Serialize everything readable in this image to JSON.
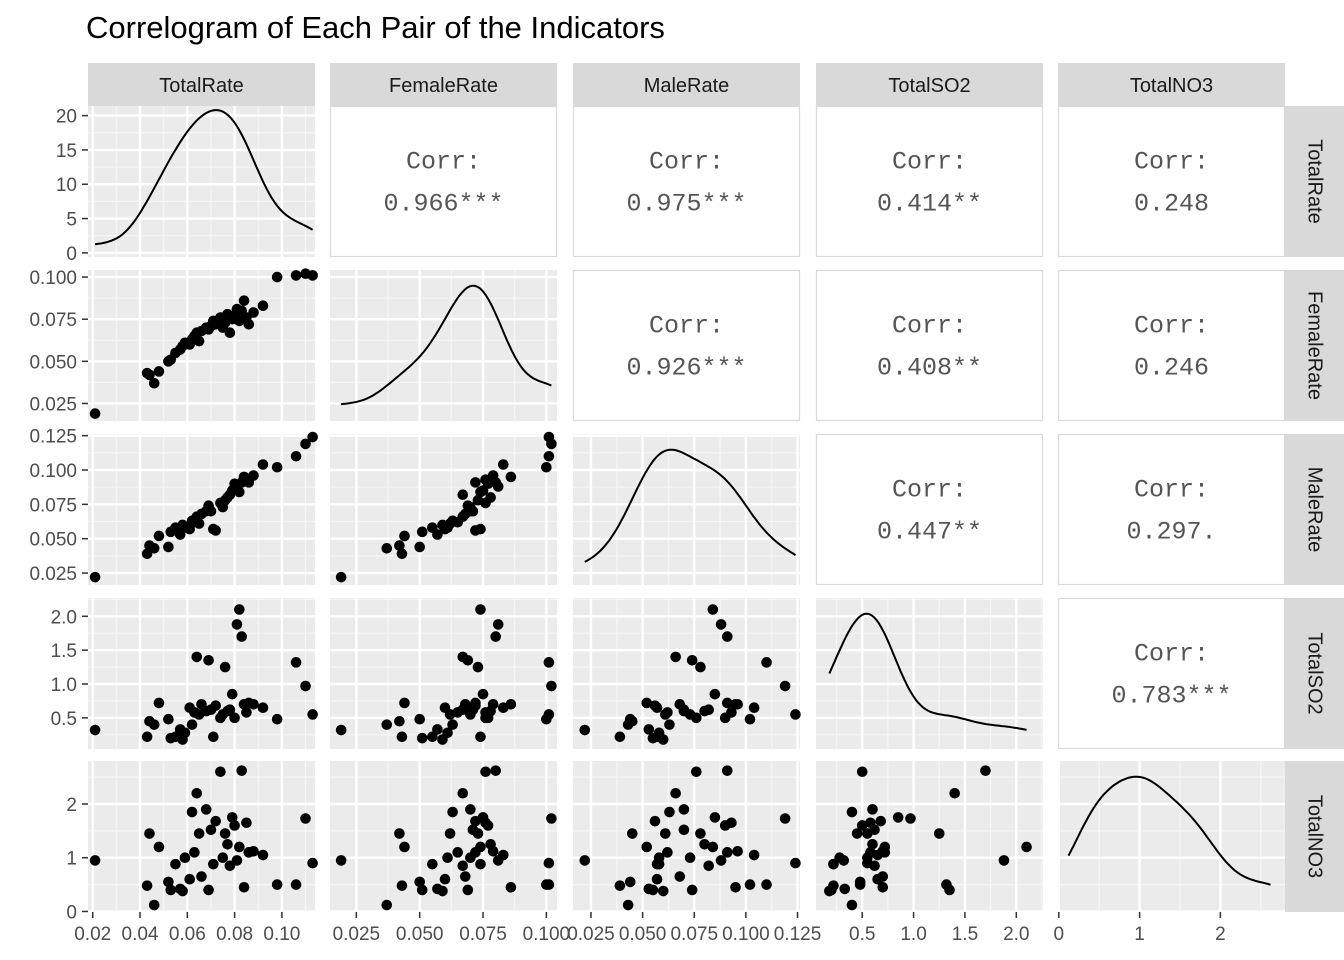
{
  "chart_data": {
    "type": "scatter",
    "title": "Correlogram of Each Pair of the Indicators",
    "variables": [
      "TotalRate",
      "FemaleRate",
      "MaleRate",
      "TotalSO2",
      "TotalNO3"
    ],
    "corr_label": "Corr:",
    "correlations": [
      {
        "row": "TotalRate",
        "col": "FemaleRate",
        "text": "0.966***"
      },
      {
        "row": "TotalRate",
        "col": "MaleRate",
        "text": "0.975***"
      },
      {
        "row": "TotalRate",
        "col": "TotalSO2",
        "text": "0.414**"
      },
      {
        "row": "TotalRate",
        "col": "TotalNO3",
        "text": "0.248"
      },
      {
        "row": "FemaleRate",
        "col": "MaleRate",
        "text": "0.926***"
      },
      {
        "row": "FemaleRate",
        "col": "TotalSO2",
        "text": "0.408**"
      },
      {
        "row": "FemaleRate",
        "col": "TotalNO3",
        "text": "0.246"
      },
      {
        "row": "MaleRate",
        "col": "TotalSO2",
        "text": "0.447**"
      },
      {
        "row": "MaleRate",
        "col": "TotalNO3",
        "text": "0.297."
      },
      {
        "row": "TotalSO2",
        "col": "TotalNO3",
        "text": "0.783***"
      }
    ],
    "x_axis": {
      "TotalRate": {
        "range": [
          0.018,
          0.114
        ],
        "ticks": [
          0.02,
          0.04,
          0.06,
          0.08,
          0.1
        ],
        "labels": [
          "0.02",
          "0.04",
          "0.06",
          "0.08",
          "0.10"
        ]
      },
      "FemaleRate": {
        "range": [
          0.0146,
          0.1042
        ],
        "ticks": [
          0.025,
          0.05,
          0.075,
          0.1
        ],
        "labels": [
          "0.025",
          "0.050",
          "0.075",
          "0.100"
        ]
      },
      "MaleRate": {
        "range": [
          0.0163,
          0.1262
        ],
        "ticks": [
          0.025,
          0.05,
          0.075,
          0.1,
          0.125
        ],
        "labels": [
          "0.025",
          "0.050",
          "0.075",
          "0.100",
          "0.125"
        ]
      },
      "TotalSO2": {
        "range": [
          0.05,
          2.26
        ],
        "ticks": [
          0.5,
          1.0,
          1.5,
          2.0
        ],
        "labels": [
          "0.5",
          "1.0",
          "1.5",
          "2.0"
        ]
      },
      "TotalNO3": {
        "range": [
          -0.01,
          2.8
        ],
        "ticks": [
          0,
          1,
          2
        ],
        "labels": [
          "0",
          "1",
          "2"
        ]
      }
    },
    "y_axis": {
      "TotalRate": {
        "range": [
          -0.6,
          21.4
        ],
        "ticks": [
          0,
          5,
          10,
          15,
          20
        ],
        "labels": [
          "0",
          "5",
          "10",
          "15",
          "20"
        ]
      },
      "FemaleRate": {
        "range": [
          0.0146,
          0.1042
        ],
        "ticks": [
          0.025,
          0.05,
          0.075,
          0.1
        ],
        "labels": [
          "0.025",
          "0.050",
          "0.075",
          "0.100"
        ]
      },
      "MaleRate": {
        "range": [
          0.0163,
          0.1262
        ],
        "ticks": [
          0.025,
          0.05,
          0.075,
          0.1,
          0.125
        ],
        "labels": [
          "0.025",
          "0.050",
          "0.075",
          "0.100",
          "0.125"
        ]
      },
      "TotalSO2": {
        "range": [
          0.04,
          2.27
        ],
        "ticks": [
          0.5,
          1.0,
          1.5,
          2.0
        ],
        "labels": [
          "0.5",
          "1.0",
          "1.5",
          "2.0"
        ]
      },
      "TotalNO3": {
        "range": [
          -0.01,
          2.8
        ],
        "ticks": [
          0,
          1,
          2
        ],
        "labels": [
          "0",
          "1",
          "2"
        ]
      }
    },
    "points": {
      "TotalRate": [
        0.021,
        0.043,
        0.044,
        0.046,
        0.048,
        0.052,
        0.053,
        0.055,
        0.057,
        0.058,
        0.059,
        0.061,
        0.062,
        0.063,
        0.064,
        0.065,
        0.066,
        0.068,
        0.069,
        0.07,
        0.071,
        0.072,
        0.074,
        0.075,
        0.076,
        0.077,
        0.078,
        0.079,
        0.08,
        0.081,
        0.082,
        0.083,
        0.084,
        0.085,
        0.086,
        0.088,
        0.092,
        0.098,
        0.106,
        0.11,
        0.113
      ],
      "FemaleRate": [
        0.019,
        0.043,
        0.042,
        0.037,
        0.044,
        0.05,
        0.051,
        0.055,
        0.057,
        0.059,
        0.061,
        0.06,
        0.063,
        0.065,
        0.067,
        0.062,
        0.068,
        0.07,
        0.069,
        0.071,
        0.074,
        0.072,
        0.076,
        0.07,
        0.073,
        0.078,
        0.067,
        0.075,
        0.077,
        0.081,
        0.074,
        0.08,
        0.086,
        0.076,
        0.072,
        0.079,
        0.083,
        0.1,
        0.101,
        0.102,
        0.101
      ],
      "MaleRate": [
        0.022,
        0.039,
        0.045,
        0.043,
        0.052,
        0.044,
        0.055,
        0.058,
        0.053,
        0.06,
        0.058,
        0.057,
        0.063,
        0.062,
        0.066,
        0.061,
        0.068,
        0.07,
        0.074,
        0.07,
        0.057,
        0.056,
        0.076,
        0.073,
        0.078,
        0.08,
        0.082,
        0.085,
        0.09,
        0.088,
        0.084,
        0.091,
        0.095,
        0.093,
        0.091,
        0.096,
        0.104,
        0.102,
        0.11,
        0.119,
        0.124
      ],
      "TotalSO2": [
        0.32,
        0.22,
        0.45,
        0.4,
        0.72,
        0.48,
        0.2,
        0.22,
        0.33,
        0.18,
        0.28,
        0.65,
        0.4,
        0.58,
        1.4,
        0.55,
        0.7,
        0.6,
        1.35,
        0.62,
        0.22,
        0.68,
        0.5,
        0.55,
        1.25,
        0.6,
        0.62,
        0.85,
        0.5,
        1.88,
        2.1,
        1.7,
        0.7,
        0.58,
        0.72,
        0.7,
        0.65,
        0.48,
        1.32,
        0.97,
        0.55
      ],
      "TotalNO3": [
        0.95,
        0.48,
        1.45,
        0.12,
        1.2,
        0.55,
        0.4,
        0.88,
        0.42,
        0.38,
        1.0,
        0.6,
        1.85,
        1.1,
        2.2,
        1.45,
        0.65,
        1.9,
        0.4,
        1.52,
        0.88,
        1.68,
        2.6,
        1.0,
        1.45,
        1.25,
        0.85,
        1.75,
        1.6,
        0.95,
        1.2,
        2.62,
        0.45,
        1.65,
        1.1,
        1.12,
        1.05,
        0.5,
        0.5,
        1.73,
        0.9
      ]
    }
  }
}
